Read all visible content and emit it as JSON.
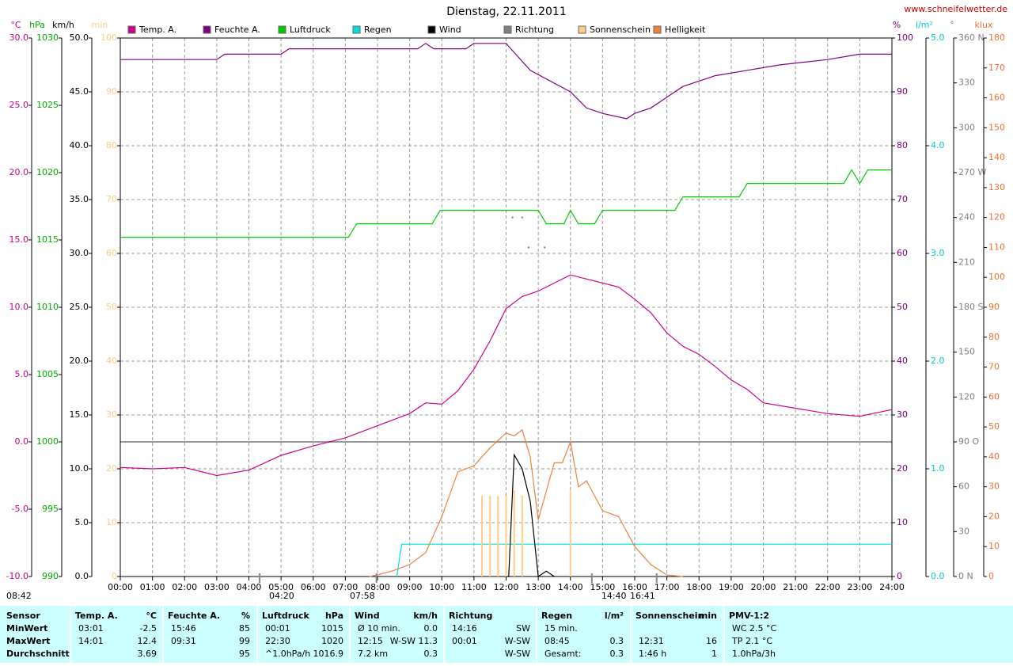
{
  "chart_data": {
    "type": "line",
    "title": "Dienstag, 22.11.2011",
    "source": "www.schneifelwetter.de",
    "xlim": [
      0,
      24
    ],
    "xticks": [
      {
        "value": 0,
        "label": "00:00"
      },
      {
        "value": 1,
        "label": "01:00"
      },
      {
        "value": 2,
        "label": "02:00"
      },
      {
        "value": 3,
        "label": "03:00"
      },
      {
        "value": 4,
        "label": "04:00"
      },
      {
        "value": 5,
        "label": "05:00"
      },
      {
        "value": 6,
        "label": "06:00"
      },
      {
        "value": 7,
        "label": "07:00"
      },
      {
        "value": 8,
        "label": "08:00"
      },
      {
        "value": 9,
        "label": "09:00"
      },
      {
        "value": 10,
        "label": "10:00"
      },
      {
        "value": 11,
        "label": "11:00"
      },
      {
        "value": 12,
        "label": "12:00"
      },
      {
        "value": 13,
        "label": "13:00"
      },
      {
        "value": 14,
        "label": "14:00"
      },
      {
        "value": 15,
        "label": "15:00"
      },
      {
        "value": 16,
        "label": "16:00"
      },
      {
        "value": 17,
        "label": "17:00"
      },
      {
        "value": 18,
        "label": "18:00"
      },
      {
        "value": 19,
        "label": "19:00"
      },
      {
        "value": 20,
        "label": "20:00"
      },
      {
        "value": 21,
        "label": "21:00"
      },
      {
        "value": 22,
        "label": "22:00"
      },
      {
        "value": 23,
        "label": "23:00"
      },
      {
        "value": 24,
        "label": "24:00"
      }
    ],
    "grid": true,
    "zero_line": true,
    "axes": [
      {
        "unit": "°C",
        "color": "#cc0088",
        "lim": [
          -10,
          30
        ],
        "ticks": [
          {
            "value": -10,
            "label": "-10.0"
          },
          {
            "value": -5,
            "label": "-5.0"
          },
          {
            "value": 0,
            "label": "0.0"
          },
          {
            "value": 5,
            "label": "5.0"
          },
          {
            "value": 10,
            "label": "10.0"
          },
          {
            "value": 15,
            "label": "15.0"
          },
          {
            "value": 20,
            "label": "20.0"
          },
          {
            "value": 25,
            "label": "25.0"
          },
          {
            "value": 30,
            "label": "30.0"
          }
        ]
      },
      {
        "unit": "hPa",
        "color": "#00aa00",
        "lim": [
          990,
          1030
        ],
        "ticks": [
          990,
          995,
          1000,
          1005,
          1010,
          1015,
          1020,
          1025,
          1030
        ]
      },
      {
        "unit": "km/h",
        "color": "#000000",
        "lim": [
          0,
          50
        ],
        "ticks": [
          {
            "value": 0,
            "label": "0.0"
          },
          {
            "value": 5,
            "label": "5.0"
          },
          {
            "value": 10,
            "label": "10.0"
          },
          {
            "value": 15,
            "label": "15.0"
          },
          {
            "value": 20,
            "label": "20.0"
          },
          {
            "value": 25,
            "label": "25.0"
          },
          {
            "value": 30,
            "label": "30.0"
          },
          {
            "value": 35,
            "label": "35.0"
          },
          {
            "value": 40,
            "label": "40.0"
          },
          {
            "value": 45,
            "label": "45.0"
          },
          {
            "value": 50,
            "label": "50.0"
          }
        ]
      },
      {
        "unit": "min",
        "color": "#ffcc88",
        "lim": [
          0,
          100
        ],
        "ticks": [
          0,
          10,
          20,
          30,
          40,
          50,
          60,
          70,
          80,
          90,
          100
        ]
      },
      {
        "unit": "%",
        "color": "#800080",
        "lim": [
          0,
          100
        ],
        "ticks": [
          0,
          10,
          20,
          30,
          40,
          50,
          60,
          70,
          80,
          90,
          100
        ]
      },
      {
        "unit": "l/m²",
        "color": "#00cccc",
        "lim": [
          0,
          5
        ],
        "ticks": [
          {
            "value": 0,
            "label": "0.0"
          },
          {
            "value": 1,
            "label": "1.0"
          },
          {
            "value": 2,
            "label": "2.0"
          },
          {
            "value": 3,
            "label": "3.0"
          },
          {
            "value": 4,
            "label": "4.0"
          },
          {
            "value": 5,
            "label": "5.0"
          }
        ]
      },
      {
        "unit": "°",
        "color": "#808080",
        "lim": [
          0,
          360
        ],
        "ticks": [
          {
            "value": 0,
            "label": "0 N"
          },
          30,
          60,
          {
            "value": 90,
            "label": "90 O"
          },
          120,
          150,
          {
            "value": 180,
            "label": "180 S"
          },
          210,
          240,
          {
            "value": 270,
            "label": "270 W"
          },
          300,
          330,
          {
            "value": 360,
            "label": "360 N"
          }
        ]
      },
      {
        "unit": "klux",
        "color": "#f07030",
        "lim": [
          0,
          180
        ],
        "ticks": [
          0,
          10,
          20,
          30,
          40,
          50,
          60,
          70,
          80,
          90,
          100,
          110,
          120,
          130,
          140,
          150,
          160,
          170,
          180
        ]
      }
    ],
    "series": [
      {
        "name": "Temp. A.",
        "color": "#cc0088",
        "axis": 0,
        "type": "line",
        "x": [
          0,
          1,
          2,
          3,
          4,
          5,
          6,
          7,
          8,
          9,
          9.5,
          10,
          10.5,
          11,
          11.5,
          12,
          12.5,
          13,
          13.5,
          14,
          14.5,
          15,
          15.5,
          16,
          16.5,
          17,
          17.5,
          18,
          18.5,
          19,
          19.5,
          20,
          21,
          22,
          23,
          24
        ],
        "values": [
          -1.9,
          -2.0,
          -1.9,
          -2.5,
          -2.1,
          -1.0,
          -0.3,
          0.3,
          1.2,
          2.1,
          2.9,
          2.8,
          3.8,
          5.4,
          7.5,
          9.9,
          10.8,
          11.2,
          11.8,
          12.4,
          12.1,
          11.8,
          11.5,
          10.6,
          9.6,
          8.1,
          7.1,
          6.5,
          5.6,
          4.6,
          3.9,
          2.9,
          2.5,
          2.1,
          1.9,
          2.4
        ]
      },
      {
        "name": "Feuchte A.",
        "color": "#800080",
        "axis": 4,
        "type": "line",
        "x": [
          0,
          3,
          3.25,
          5,
          5.25,
          9.25,
          9.5,
          9.75,
          10,
          10.75,
          11,
          12,
          12.75,
          14,
          14.5,
          15,
          15.75,
          16,
          16.5,
          17,
          17.5,
          18.5,
          19.5,
          20.5,
          22,
          23,
          24
        ],
        "values": [
          96,
          96,
          97,
          97,
          98,
          98,
          99,
          98,
          98,
          98,
          99,
          99,
          94,
          90,
          87,
          86,
          85,
          86,
          87,
          89,
          91,
          93,
          94,
          95,
          96,
          97,
          97
        ]
      },
      {
        "name": "Luftdruck",
        "color": "#00cc00",
        "axis": 1,
        "type": "line",
        "x": [
          0,
          7.1,
          7.35,
          9.7,
          9.95,
          13,
          13.25,
          13.8,
          14,
          14.25,
          14.75,
          15,
          17.25,
          17.5,
          19.25,
          19.5,
          22.5,
          22.75,
          23,
          23.25,
          24
        ],
        "values": [
          1015.2,
          1015.2,
          1016.2,
          1016.2,
          1017.2,
          1017.2,
          1016.2,
          1016.2,
          1017.2,
          1016.2,
          1016.2,
          1017.2,
          1017.2,
          1018.2,
          1018.2,
          1019.2,
          1019.2,
          1020.2,
          1019.2,
          1020.2,
          1020.2
        ]
      },
      {
        "name": "Regen",
        "color": "#00e0e0",
        "axis": 5,
        "type": "line",
        "x": [
          8.6,
          8.75,
          24
        ],
        "values": [
          0,
          0.3,
          0.3
        ]
      },
      {
        "name": "Wind",
        "color": "#000000",
        "axis": 2,
        "type": "line",
        "x": [
          12,
          12.08,
          12.25,
          12.5,
          12.75,
          13,
          13.25,
          13.5
        ],
        "values": [
          0,
          0,
          11.3,
          10,
          7,
          0,
          0.5,
          0
        ]
      },
      {
        "name": "Richtung",
        "color": "#808080",
        "axis": 6,
        "type": "scatter",
        "x": [
          12.2,
          12.5,
          12.7,
          13.2
        ],
        "values": [
          240,
          240,
          220,
          220
        ]
      },
      {
        "name": "Sonnenschein",
        "color": "#ffcc88",
        "axis": 3,
        "type": "bar",
        "x": [
          11.25,
          11.5,
          11.75,
          12,
          12.25,
          12.5,
          14
        ],
        "values": [
          15,
          15,
          15,
          15,
          16,
          15,
          16
        ]
      },
      {
        "name": "Helligkeit",
        "color": "#f08040",
        "axis": 7,
        "type": "line",
        "x": [
          7.75,
          8,
          8.5,
          9,
          9.5,
          9.75,
          10,
          10.5,
          10.75,
          11,
          11.5,
          12,
          12.25,
          12.5,
          12.75,
          13,
          13.5,
          13.75,
          14,
          14.25,
          14.5,
          15,
          15.5,
          16,
          16.5,
          17,
          17.5
        ],
        "values": [
          0,
          0.5,
          2,
          4,
          8,
          14,
          20,
          35,
          36,
          37,
          43,
          48,
          47,
          49,
          40,
          19,
          38,
          38,
          45,
          30,
          32,
          22,
          20,
          10,
          4,
          0.5,
          0
        ]
      }
    ],
    "annotations": [
      {
        "text": "08:42"
      },
      {
        "text": "04:20",
        "x": 4.333
      },
      {
        "text": "07:58",
        "x": 7.967
      },
      {
        "text": "14:40",
        "x": 14.667
      },
      {
        "text": "16:41",
        "x": 16.683
      }
    ]
  },
  "stats": {
    "row_title": "Sensor",
    "row_labels": [
      "MinWert",
      "MaxWert",
      "Durchschnitt"
    ],
    "columns": [
      {
        "title": "Temp. A.",
        "unit": "°C",
        "cells": [
          [
            "03:01",
            "-2.5"
          ],
          [
            "14:01",
            "12.4"
          ],
          [
            null,
            "3.69"
          ]
        ]
      },
      {
        "title": "Feuchte A.",
        "unit": "%",
        "cells": [
          [
            "15:46",
            "85"
          ],
          [
            "09:31",
            "99"
          ],
          [
            null,
            "95"
          ]
        ]
      },
      {
        "title": "Luftdruck",
        "unit": "hPa",
        "cells": [
          [
            "00:01",
            "1015"
          ],
          [
            "22:30",
            "1020"
          ],
          [
            "^1.0hPa/h",
            "1016.9"
          ]
        ]
      },
      {
        "title": "Wind",
        "unit": "km/h",
        "cells": [
          [
            "Ø 10 min.",
            "0.0"
          ],
          [
            "12:15",
            "W-SW 11.3"
          ],
          [
            "7.2 km",
            "0.3"
          ]
        ]
      },
      {
        "title": "Richtung",
        "unit": null,
        "cells": [
          [
            "14:16",
            "SW"
          ],
          [
            "00:01",
            "W-SW"
          ],
          [
            null,
            "W-SW"
          ]
        ]
      },
      {
        "title": "Regen",
        "unit": "l/m²",
        "cells": [
          [
            "15 min.",
            null
          ],
          [
            "08:45",
            "0.3"
          ],
          [
            "Gesamt:",
            "0.3"
          ]
        ]
      },
      {
        "title": "Sonnenschein",
        "unit": "min",
        "cells": [
          [
            null,
            null
          ],
          [
            "12:31",
            "16"
          ],
          [
            "1:46 h",
            "1"
          ]
        ]
      },
      {
        "title": "PMV-1:2",
        "unit": null,
        "cells": [
          [
            "WC 2.5 °C",
            null
          ],
          [
            "TP 2.1 °C",
            null
          ],
          [
            "1.0hPa/3h",
            null
          ]
        ]
      }
    ]
  }
}
